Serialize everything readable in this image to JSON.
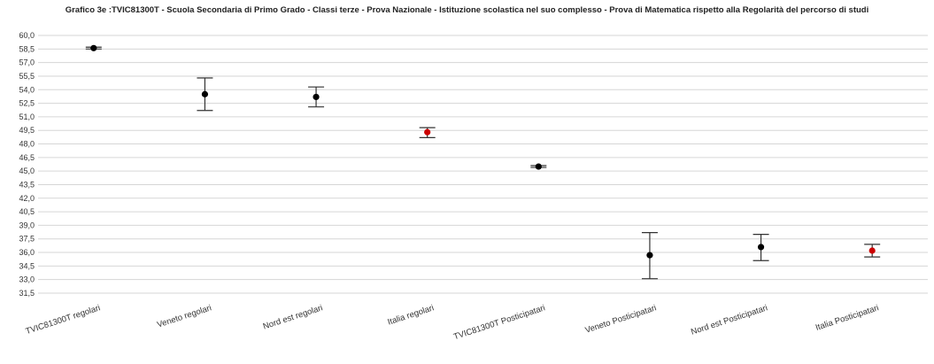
{
  "chart_data": {
    "type": "scatter",
    "title": "Grafico 3e :TVIC81300T - Scuola Secondaria di Primo Grado - Classi terze - Prova Nazionale - Istituzione scolastica nel suo complesso - Prova di Matematica rispetto alla Regolarità del percorso di studi",
    "xlabel": "",
    "ylabel": "",
    "ylim": [
      31.5,
      60.0
    ],
    "yticks": [
      "60,0",
      "58,5",
      "57,0",
      "55,5",
      "54,0",
      "52,5",
      "51,0",
      "49,5",
      "48,0",
      "46,5",
      "45,0",
      "43,5",
      "42,0",
      "40,5",
      "39,0",
      "37,5",
      "36,0",
      "34,5",
      "33,0",
      "31,5"
    ],
    "grid": true,
    "legend": "none",
    "categories": [
      "TVIC81300T regolari",
      "Veneto regolari",
      "Nord est regolari",
      "Italia regolari",
      "TVIC81300T Posticipatari",
      "Veneto Posticipatari",
      "Nord est Posticipatari",
      "Italia Posticipatari"
    ],
    "series": [
      {
        "values": [
          58.6,
          53.5,
          53.2,
          49.3,
          45.5,
          35.7,
          36.6,
          36.2
        ],
        "lower": [
          58.5,
          51.7,
          52.1,
          48.7,
          45.4,
          33.1,
          35.1,
          35.5
        ],
        "upper": [
          58.7,
          55.3,
          54.3,
          49.8,
          45.6,
          38.2,
          38.0,
          36.9
        ],
        "colors": [
          "#000000",
          "#000000",
          "#000000",
          "#cc0000",
          "#000000",
          "#000000",
          "#000000",
          "#cc0000"
        ]
      }
    ]
  }
}
